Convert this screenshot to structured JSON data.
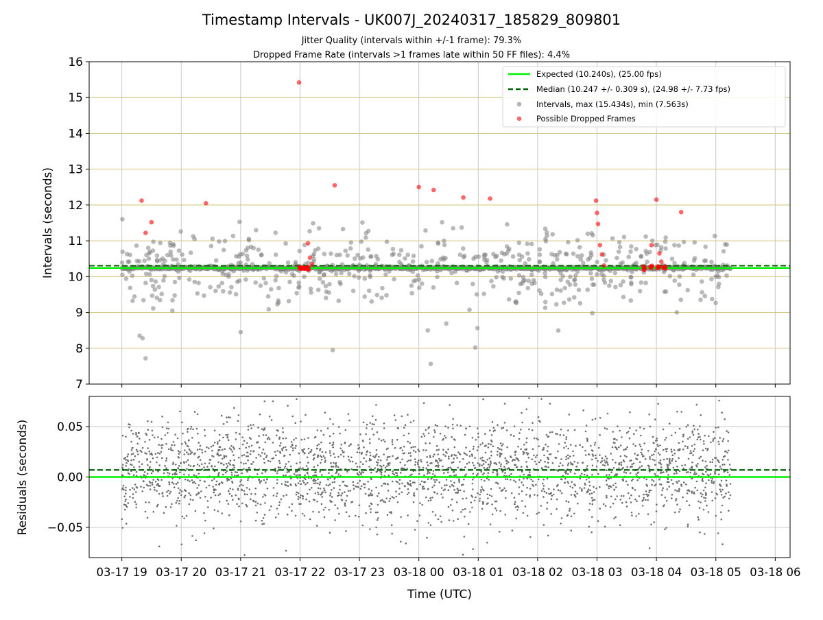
{
  "figure": {
    "title": "Timestamp Intervals - UK007J_20240317_185829_809801",
    "subtitle_1": "Jitter Quality (intervals within +/-1 frame): 79.3%",
    "subtitle_2": "Dropped Frame Rate (intervals >1 frames late within 50 FF files): 4.4%"
  },
  "colors": {
    "expected": "#00ee00",
    "median": "#006400",
    "intervals": "#808080",
    "dropped": "#ff0000",
    "grid_top": "#d4c27a",
    "grid": "#c8c8c8",
    "residual_points": "#6e6e6e"
  },
  "chart_data": [
    {
      "type": "scatter",
      "title": "",
      "xlabel": "",
      "ylabel": "Intervals (seconds)",
      "ylim": [
        7,
        16
      ],
      "yticks": [
        7,
        8,
        9,
        10,
        11,
        12,
        13,
        14,
        15,
        16
      ],
      "xlim_hours": [
        18.45,
        30.25
      ],
      "grid": true,
      "legend_position": "top-right",
      "legend": [
        "Expected (10.240s), (25.00 fps)",
        "Median (10.247 +/- 0.309 s), (24.98 +/- 7.73 fps)",
        "Intervals, max (15.434s), min (7.563s)",
        "Possible Dropped Frames"
      ],
      "expected": 10.24,
      "median": 10.247,
      "interval_summary": {
        "max": 15.434,
        "min": 7.563,
        "baseline": 10.24,
        "n_scattered": 560
      },
      "dropped_frames": {
        "time": [
          "2024-03-17 19:20",
          "2024-03-17 19:24",
          "2024-03-17 19:30",
          "2024-03-17 20:25",
          "2024-03-17 21:59",
          "2024-03-17 22:08",
          "2024-03-17 22:10",
          "2024-03-17 22:12",
          "2024-03-17 22:35",
          "2024-03-18 00:00",
          "2024-03-18 00:15",
          "2024-03-18 00:45",
          "2024-03-18 01:12",
          "2024-03-18 02:59",
          "2024-03-18 03:00",
          "2024-03-18 03:01",
          "2024-03-18 03:03",
          "2024-03-18 03:05",
          "2024-03-18 03:07",
          "2024-03-18 03:55",
          "2024-03-18 04:00",
          "2024-03-18 04:03",
          "2024-03-18 04:05",
          "2024-03-18 04:25"
        ],
        "values": [
          12.12,
          11.22,
          11.52,
          12.05,
          15.42,
          10.93,
          10.53,
          10.35,
          12.55,
          12.5,
          12.42,
          12.21,
          12.18,
          12.12,
          11.78,
          11.47,
          10.88,
          10.62,
          10.31,
          10.88,
          12.15,
          10.65,
          10.42,
          11.8
        ],
        "cluster_times": [
          "2024-03-17 22:00",
          "2024-03-17 22:04",
          "2024-03-17 22:08",
          "2024-03-18 03:48",
          "2024-03-18 03:55",
          "2024-03-18 04:02",
          "2024-03-18 04:08"
        ],
        "cluster_value": 10.25
      }
    },
    {
      "type": "scatter",
      "title": "",
      "xlabel": "Time (UTC)",
      "ylabel": "Residuals (seconds)",
      "ylim": [
        -0.08,
        0.08
      ],
      "yticks": [
        "−0.05",
        "0.00",
        "0.05"
      ],
      "ytick_values": [
        -0.05,
        0.0,
        0.05
      ],
      "x_tick_labels": [
        "03-17 19",
        "03-17 20",
        "03-17 21",
        "03-17 22",
        "03-17 23",
        "03-18 00",
        "03-18 01",
        "03-18 02",
        "03-18 03",
        "03-18 04",
        "03-18 05",
        "03-18 06"
      ],
      "x_tick_hours": [
        19,
        20,
        21,
        22,
        23,
        24,
        25,
        26,
        27,
        28,
        29,
        30
      ],
      "expected": 0.0,
      "median": 0.007,
      "residual_summary": {
        "n_points": 2600,
        "spread": 0.025,
        "mean": 0.006
      },
      "grid": true
    }
  ]
}
